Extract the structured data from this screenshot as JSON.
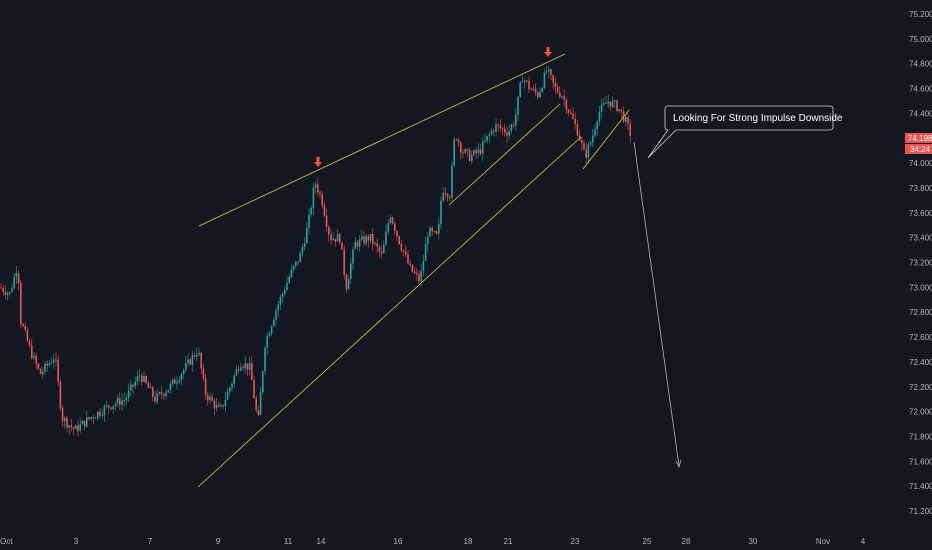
{
  "chart_data": {
    "type": "candlestick",
    "ylim": [
      71.1,
      75.3
    ],
    "y_ticks": [
      "75.200",
      "75.000",
      "74.800",
      "74.600",
      "74.400",
      "74.200",
      "74.000",
      "73.800",
      "73.600",
      "73.400",
      "73.200",
      "73.000",
      "72.800",
      "72.600",
      "72.400",
      "72.200",
      "72.000",
      "71.800",
      "71.600",
      "71.400",
      "71.200"
    ],
    "x_ticks": [
      "Oct",
      "3",
      "7",
      "9",
      "11",
      "14",
      "16",
      "18",
      "21",
      "23",
      "25",
      "28",
      "30",
      "Nov",
      "4"
    ],
    "current_price": "74.198",
    "countdown": "34:24",
    "annotation": "Looking For Strong Impulse Downside",
    "colors": {
      "background": "#131722",
      "bull": "#26a69a",
      "bear": "#ef5350",
      "trendline": "#d4cf3a",
      "arrow_marker": "#ef5350",
      "projection": "#b2b5be",
      "axis_text": "#b2b5be"
    },
    "price_path": [
      [
        0,
        73.0
      ],
      [
        10,
        72.95
      ],
      [
        18,
        73.2
      ],
      [
        20,
        72.75
      ],
      [
        30,
        72.5
      ],
      [
        40,
        72.3
      ],
      [
        55,
        72.45
      ],
      [
        62,
        71.95
      ],
      [
        75,
        71.85
      ],
      [
        90,
        71.95
      ],
      [
        110,
        72.05
      ],
      [
        125,
        72.1
      ],
      [
        140,
        72.3
      ],
      [
        155,
        72.1
      ],
      [
        170,
        72.2
      ],
      [
        185,
        72.35
      ],
      [
        198,
        72.5
      ],
      [
        205,
        72.15
      ],
      [
        220,
        72.0
      ],
      [
        240,
        72.4
      ],
      [
        250,
        72.35
      ],
      [
        258,
        71.9
      ],
      [
        265,
        72.55
      ],
      [
        275,
        72.8
      ],
      [
        290,
        73.1
      ],
      [
        300,
        73.25
      ],
      [
        308,
        73.5
      ],
      [
        315,
        73.85
      ],
      [
        322,
        73.7
      ],
      [
        330,
        73.4
      ],
      [
        340,
        73.4
      ],
      [
        346,
        73.0
      ],
      [
        355,
        73.35
      ],
      [
        370,
        73.4
      ],
      [
        382,
        73.25
      ],
      [
        390,
        73.6
      ],
      [
        398,
        73.4
      ],
      [
        410,
        73.15
      ],
      [
        420,
        73.05
      ],
      [
        428,
        73.45
      ],
      [
        438,
        73.4
      ],
      [
        442,
        73.8
      ],
      [
        450,
        73.75
      ],
      [
        455,
        74.25
      ],
      [
        462,
        74.1
      ],
      [
        470,
        74.05
      ],
      [
        480,
        74.1
      ],
      [
        495,
        74.3
      ],
      [
        508,
        74.25
      ],
      [
        515,
        74.35
      ],
      [
        522,
        74.7
      ],
      [
        530,
        74.6
      ],
      [
        538,
        74.55
      ],
      [
        547,
        74.75
      ],
      [
        555,
        74.6
      ],
      [
        562,
        74.55
      ],
      [
        570,
        74.4
      ],
      [
        578,
        74.25
      ],
      [
        585,
        74.05
      ],
      [
        592,
        74.2
      ],
      [
        598,
        74.4
      ],
      [
        608,
        74.5
      ],
      [
        618,
        74.45
      ],
      [
        625,
        74.35
      ],
      [
        632,
        74.2
      ]
    ]
  },
  "annotation_label": "Looking For Strong Impulse Downside"
}
